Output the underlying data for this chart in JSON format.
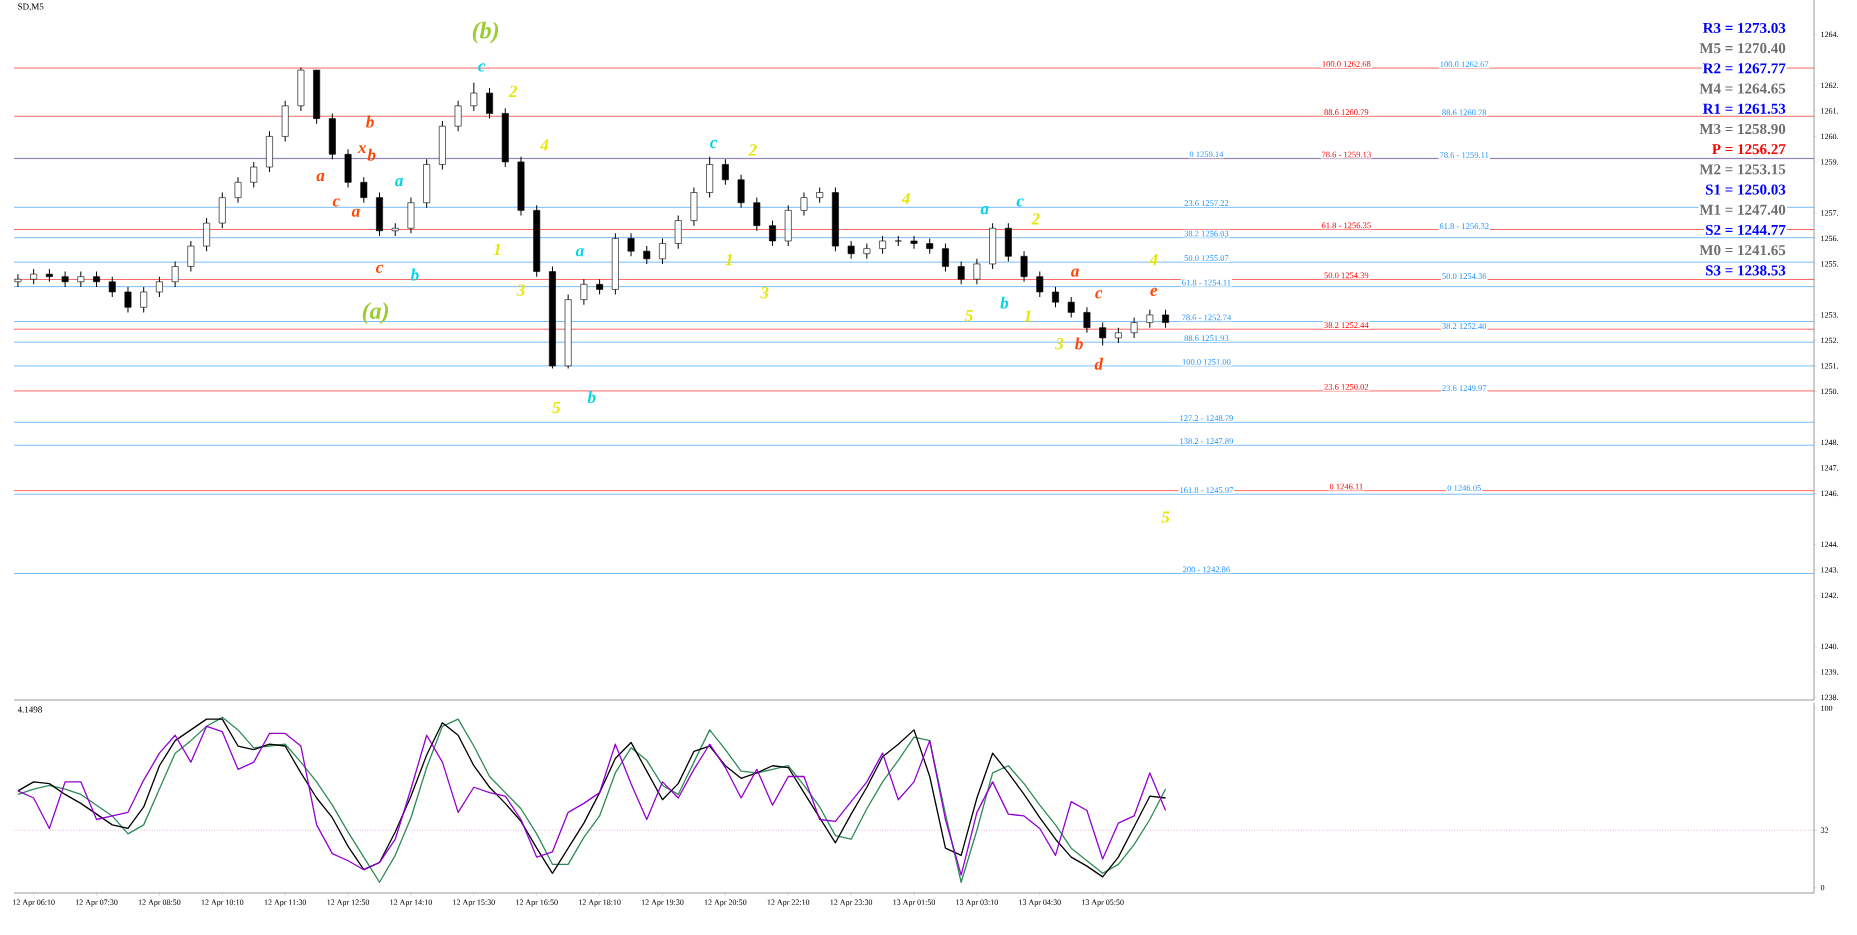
{
  "chart_data": [
    {
      "type": "candlestick",
      "title": "SD,M5",
      "tick_labels": "y",
      "categories": [
        null,
        null,
        null,
        null,
        null,
        null,
        null,
        null,
        null,
        null,
        null,
        null,
        null,
        null,
        null,
        null,
        null,
        null,
        null,
        null,
        null,
        null,
        null,
        null,
        null,
        null,
        null,
        null,
        null,
        null,
        null,
        null,
        null,
        null,
        null,
        null,
        null,
        null,
        null,
        null,
        null,
        null,
        null,
        null,
        null,
        null,
        null,
        null,
        null,
        null,
        null,
        null,
        null,
        null,
        null,
        null,
        null,
        null,
        null,
        null,
        null,
        null,
        null,
        null,
        null,
        null,
        null,
        null,
        null,
        null,
        null,
        null,
        null,
        null,
        null,
        null,
        null,
        null,
        null,
        null,
        null,
        null,
        null,
        null,
        null,
        null,
        null,
        null,
        null,
        null,
        null,
        null,
        null,
        null,
        null,
        null,
        null,
        null,
        null,
        null,
        null,
        null,
        null,
        null,
        null,
        null,
        null,
        null,
        null,
        null,
        null,
        null,
        null,
        null,
        null
      ],
      "ohlc": [
        [
          1254.3,
          1254.6,
          1254.1,
          1254.4
        ],
        [
          1254.4,
          1254.8,
          1254.2,
          1254.6
        ],
        [
          1254.6,
          1254.8,
          1254.3,
          1254.5
        ],
        [
          1254.5,
          1254.7,
          1254.1,
          1254.3
        ],
        [
          1254.3,
          1254.7,
          1254.1,
          1254.5
        ],
        [
          1254.5,
          1254.7,
          1254.1,
          1254.3
        ],
        [
          1254.3,
          1254.5,
          1253.7,
          1253.9
        ],
        [
          1253.9,
          1254.1,
          1253.1,
          1253.3
        ],
        [
          1253.3,
          1254.1,
          1253.1,
          1253.9
        ],
        [
          1253.9,
          1254.5,
          1253.7,
          1254.3
        ],
        [
          1254.3,
          1255.1,
          1254.1,
          1254.9
        ],
        [
          1254.9,
          1255.9,
          1254.7,
          1255.7
        ],
        [
          1255.7,
          1256.8,
          1255.5,
          1256.6
        ],
        [
          1256.6,
          1257.8,
          1256.4,
          1257.6
        ],
        [
          1257.6,
          1258.4,
          1257.4,
          1258.2
        ],
        [
          1258.2,
          1259.0,
          1258.0,
          1258.8
        ],
        [
          1258.8,
          1260.2,
          1258.6,
          1260.0
        ],
        [
          1260.0,
          1261.4,
          1259.8,
          1261.2
        ],
        [
          1261.2,
          1262.7,
          1261.0,
          1262.6
        ],
        [
          1262.6,
          1262.6,
          1260.5,
          1260.7
        ],
        [
          1260.7,
          1260.9,
          1259.1,
          1259.3
        ],
        [
          1259.3,
          1259.5,
          1258.0,
          1258.2
        ],
        [
          1258.2,
          1258.4,
          1257.4,
          1257.6
        ],
        [
          1257.6,
          1257.8,
          1256.1,
          1256.3
        ],
        [
          1256.3,
          1256.6,
          1256.1,
          1256.4
        ],
        [
          1256.4,
          1257.6,
          1256.2,
          1257.4
        ],
        [
          1257.4,
          1259.1,
          1257.2,
          1258.9
        ],
        [
          1258.9,
          1260.6,
          1258.7,
          1260.4
        ],
        [
          1260.4,
          1261.4,
          1260.2,
          1261.2
        ],
        [
          1261.2,
          1262.1,
          1261.0,
          1261.7
        ],
        [
          1261.7,
          1261.9,
          1260.7,
          1260.9
        ],
        [
          1260.9,
          1261.1,
          1258.8,
          1259.0
        ],
        [
          1259.0,
          1259.2,
          1256.9,
          1257.1
        ],
        [
          1257.1,
          1257.3,
          1254.5,
          1254.7
        ],
        [
          1254.7,
          1254.9,
          1250.9,
          1251.0
        ],
        [
          1251.0,
          1253.8,
          1250.9,
          1253.6
        ],
        [
          1253.6,
          1254.4,
          1253.4,
          1254.2
        ],
        [
          1254.2,
          1254.4,
          1253.8,
          1254.0
        ],
        [
          1254.0,
          1256.2,
          1253.8,
          1256.0
        ],
        [
          1256.0,
          1256.2,
          1255.3,
          1255.5
        ],
        [
          1255.5,
          1255.7,
          1255.0,
          1255.2
        ],
        [
          1255.2,
          1256.0,
          1255.0,
          1255.8
        ],
        [
          1255.8,
          1256.9,
          1255.6,
          1256.7
        ],
        [
          1256.7,
          1258.0,
          1256.5,
          1257.8
        ],
        [
          1257.8,
          1259.2,
          1257.6,
          1258.9
        ],
        [
          1258.9,
          1259.1,
          1258.1,
          1258.3
        ],
        [
          1258.3,
          1258.5,
          1257.2,
          1257.4
        ],
        [
          1257.4,
          1257.6,
          1256.3,
          1256.5
        ],
        [
          1256.5,
          1256.7,
          1255.7,
          1255.9
        ],
        [
          1255.9,
          1257.3,
          1255.7,
          1257.1
        ],
        [
          1257.1,
          1257.8,
          1256.9,
          1257.6
        ],
        [
          1257.6,
          1258.0,
          1257.4,
          1257.8
        ],
        [
          1257.8,
          1258.0,
          1255.5,
          1255.7
        ],
        [
          1255.7,
          1255.9,
          1255.2,
          1255.4
        ],
        [
          1255.4,
          1255.8,
          1255.2,
          1255.6
        ],
        [
          1255.6,
          1256.1,
          1255.4,
          1255.9
        ],
        [
          1255.9,
          1256.1,
          1255.7,
          1255.9
        ],
        [
          1255.9,
          1256.1,
          1255.6,
          1255.8
        ],
        [
          1255.8,
          1256.0,
          1255.4,
          1255.6
        ],
        [
          1255.6,
          1255.8,
          1254.7,
          1254.9
        ],
        [
          1254.9,
          1255.1,
          1254.2,
          1254.4
        ],
        [
          1254.4,
          1255.2,
          1254.2,
          1255.0
        ],
        [
          1255.0,
          1256.6,
          1254.8,
          1256.4
        ],
        [
          1256.4,
          1256.6,
          1255.1,
          1255.3
        ],
        [
          1255.3,
          1255.5,
          1254.3,
          1254.5
        ],
        [
          1254.5,
          1254.7,
          1253.7,
          1253.9
        ],
        [
          1253.9,
          1254.1,
          1253.3,
          1253.5
        ],
        [
          1253.5,
          1253.7,
          1252.9,
          1253.1
        ],
        [
          1253.1,
          1253.3,
          1252.3,
          1252.5
        ],
        [
          1252.5,
          1252.7,
          1251.8,
          1252.1
        ],
        [
          1252.1,
          1252.5,
          1251.9,
          1252.3
        ],
        [
          1252.3,
          1252.9,
          1252.1,
          1252.7
        ],
        [
          1252.7,
          1253.2,
          1252.5,
          1253.0
        ],
        [
          1253.0,
          1253.2,
          1252.5,
          1252.7
        ],
        null,
        null,
        null,
        null,
        null,
        null,
        null,
        null,
        null,
        null,
        null,
        null,
        null,
        null,
        null,
        null,
        null,
        null,
        null,
        null,
        null,
        null,
        null,
        null,
        null,
        null,
        null,
        null,
        null,
        null,
        null,
        null,
        null,
        null,
        null,
        null,
        null,
        null,
        null,
        null,
        null
      ],
      "ylim": [
        1237.9,
        1265.35
      ],
      "yticks": [
        {
          "value": 1264,
          "label": "1264."
        },
        {
          "value": 1262,
          "label": "1262."
        },
        {
          "value": 1261,
          "label": "1261."
        },
        {
          "value": 1260,
          "label": "1260."
        },
        {
          "value": 1259,
          "label": "1259."
        },
        {
          "value": 1257,
          "label": "1257."
        },
        {
          "value": 1256,
          "label": "1256."
        },
        {
          "value": 1255,
          "label": "1255."
        },
        {
          "value": 1253,
          "label": "1253."
        },
        {
          "value": 1252,
          "label": "1252."
        },
        {
          "value": 1251,
          "label": "1251."
        },
        {
          "value": 1250,
          "label": "1250."
        },
        {
          "value": 1248,
          "label": "1248."
        },
        {
          "value": 1247,
          "label": "1247."
        },
        {
          "value": 1246,
          "label": "1246."
        },
        {
          "value": 1244,
          "label": "1244."
        },
        {
          "value": 1243,
          "label": "1243."
        },
        {
          "value": 1242,
          "label": "1242."
        },
        {
          "value": 1240,
          "label": "1240."
        },
        {
          "value": 1239,
          "label": "1239."
        },
        {
          "value": 1238,
          "label": "1238."
        }
      ],
      "ref_lines": [
        {
          "axis": "y",
          "value": 1262.68,
          "color": "#ff0000"
        },
        {
          "axis": "y",
          "value": 1260.79,
          "color": "#ff0000"
        },
        {
          "axis": "y",
          "value": 1259.13,
          "color": "#ff0000"
        },
        {
          "axis": "y",
          "value": 1256.35,
          "color": "#ff0000"
        },
        {
          "axis": "y",
          "value": 1254.39,
          "color": "#ff0000"
        },
        {
          "axis": "y",
          "value": 1252.44,
          "color": "#ff0000"
        },
        {
          "axis": "y",
          "value": 1250.02,
          "color": "#ff0000"
        },
        {
          "axis": "y",
          "value": 1246.11,
          "color": "#ff0000"
        },
        {
          "axis": "y",
          "value": 1259.14,
          "color": "#1e90ff"
        },
        {
          "axis": "y",
          "value": 1257.22,
          "color": "#1e90ff"
        },
        {
          "axis": "y",
          "value": 1256.03,
          "color": "#1e90ff"
        },
        {
          "axis": "y",
          "value": 1255.07,
          "color": "#1e90ff"
        },
        {
          "axis": "y",
          "value": 1254.11,
          "color": "#1e90ff"
        },
        {
          "axis": "y",
          "value": 1252.74,
          "color": "#1e90ff"
        },
        {
          "axis": "y",
          "value": 1251.93,
          "color": "#1e90ff"
        },
        {
          "axis": "y",
          "value": 1251.0,
          "color": "#1e90ff"
        },
        {
          "axis": "y",
          "value": 1248.79,
          "color": "#1e90ff"
        },
        {
          "axis": "y",
          "value": 1247.89,
          "color": "#1e90ff"
        },
        {
          "axis": "y",
          "value": 1245.97,
          "color": "#1e90ff"
        },
        {
          "axis": "y",
          "value": 1242.86,
          "color": "#1e90ff"
        }
      ],
      "annotations": [
        "R3 = 1273.03",
        "M5 = 1270.40",
        "R2 = 1267.77",
        "M4 = 1264.65",
        "R1 = 1261.53",
        "M3 = 1258.90",
        "P  = 1256.27",
        "M2 = 1253.15",
        "S1 = 1250.03",
        "M1 = 1247.40",
        "S2 = 1244.77",
        "M0 = 1241.65",
        "S3 = 1238.53",
        "(b)",
        "(a)",
        "c",
        "2",
        "b",
        "x",
        "b",
        "a",
        "c",
        "a",
        "a",
        "c",
        "b",
        "1",
        "4",
        "3",
        "5",
        "b",
        "a",
        "c",
        "2",
        "1",
        "3",
        "4",
        "a",
        "c",
        "2",
        "5",
        "b",
        "1",
        "a",
        "c",
        "4",
        "e",
        "3",
        "b",
        "d",
        "5",
        {
          "text": "100.0 1262.68",
          "y": 1262.68
        },
        {
          "text": "88.6 1260.79",
          "y": 1260.79
        },
        {
          "text": "78.6 - 1259.13",
          "y": 1259.13
        },
        {
          "text": "61.8 - 1256.35",
          "y": 1256.35
        },
        {
          "text": "50.0 1254.39",
          "y": 1254.39
        },
        {
          "text": "38.2 1252.44",
          "y": 1252.44
        },
        {
          "text": "23.6 1250.02",
          "y": 1250.02
        },
        {
          "text": "0 1246.11",
          "y": 1246.11
        },
        {
          "text": "100.0 1262.67",
          "y": 1262.67
        },
        {
          "text": "88.6 1260.78",
          "y": 1260.78
        },
        {
          "text": "78.6 - 1259.11",
          "y": 1259.11
        },
        {
          "text": "61.8 - 1256.32",
          "y": 1256.32
        },
        {
          "text": "50.0 1254.36",
          "y": 1254.36
        },
        {
          "text": "38.2 1252.40",
          "y": 1252.4
        },
        {
          "text": "23.6 1249.97",
          "y": 1249.97
        },
        {
          "text": "0 1246.05",
          "y": 1246.05
        },
        {
          "text": "0 1259.14",
          "y": 1259.14
        },
        {
          "text": "23.6 1257.22",
          "y": 1257.22
        },
        {
          "text": "38.2 1256.03",
          "y": 1256.03
        },
        {
          "text": "50.0 1255.07",
          "y": 1255.07
        },
        {
          "text": "61.8 - 1254.11",
          "y": 1254.11
        },
        {
          "text": "78.6 - 1252.74",
          "y": 1252.74
        },
        {
          "text": "88.6 1251.93",
          "y": 1251.93
        },
        {
          "text": "100.0 1251.00",
          "y": 1251.0
        },
        {
          "text": "127.2 - 1248.79",
          "y": 1248.79
        },
        {
          "text": "138.2 - 1247.89",
          "y": 1247.89
        },
        {
          "text": "161.8 - 1245.97",
          "y": 1245.97
        },
        {
          "text": "200 - 1242.86",
          "y": 1242.86
        }
      ]
    },
    {
      "type": "line",
      "title": "4.1498",
      "categories": [
        null,
        "12 Apr 06:10",
        null,
        null,
        null,
        "12 Apr 07:30",
        null,
        null,
        null,
        "12 Apr 08:50",
        null,
        null,
        null,
        "12 Apr 10:10",
        null,
        null,
        null,
        "12 Apr 11:30",
        null,
        null,
        null,
        "12 Apr 12:50",
        null,
        null,
        null,
        "12 Apr 14:10",
        null,
        null,
        null,
        "12 Apr 15:30",
        null,
        null,
        null,
        "12 Apr 16:50",
        null,
        null,
        null,
        "12 Apr 18:10",
        null,
        null,
        null,
        "12 Apr 19:30",
        null,
        null,
        null,
        "12 Apr 20:50",
        null,
        null,
        null,
        "12 Apr 22:10",
        null,
        null,
        null,
        "12 Apr 23:30",
        null,
        null,
        null,
        "13 Apr 01:50",
        null,
        null,
        null,
        "13 Apr 03:10",
        null,
        null,
        null,
        "13 Apr 04:30",
        null,
        null,
        null,
        "13 Apr 05:50",
        null,
        null,
        null,
        null,
        null,
        null,
        null,
        null,
        null,
        null,
        null,
        null,
        null,
        null,
        null,
        null,
        null,
        null,
        null,
        null,
        null,
        null,
        null,
        null,
        null,
        null,
        null,
        null,
        null,
        null,
        null,
        null,
        null,
        null,
        null,
        null,
        null,
        null,
        null,
        null,
        null,
        null,
        null,
        null,
        null
      ],
      "ylim": [
        -3,
        103
      ],
      "yticks": [
        0,
        32,
        100
      ],
      "ref_lines": [
        {
          "axis": "y",
          "value": 32,
          "color": "#c030c0",
          "line_style": "dotted"
        }
      ],
      "series": [
        {
          "color": "#2e8b57",
          "values": [
            52,
            55,
            57,
            55,
            52,
            46,
            40,
            30,
            35,
            55,
            75,
            82,
            90,
            95,
            88,
            78,
            79,
            80,
            70,
            59,
            46,
            31,
            17,
            3,
            18,
            39,
            67,
            90,
            94,
            79,
            62,
            53,
            44,
            30,
            13,
            13,
            28,
            40,
            64,
            78,
            71,
            57,
            52,
            70,
            88,
            77,
            65,
            64,
            66,
            68,
            57,
            45,
            29,
            27,
            44,
            59,
            71,
            84,
            82,
            41,
            3,
            32,
            64,
            68,
            58,
            46,
            35,
            22,
            15,
            8,
            13,
            24,
            38,
            55,
            null,
            null,
            null,
            null,
            null,
            null,
            null,
            null,
            null,
            null,
            null,
            null,
            null,
            null,
            null,
            null,
            null,
            null,
            null,
            null,
            null,
            null,
            null,
            null,
            null,
            null,
            null,
            null,
            null,
            null,
            null,
            null,
            null,
            null,
            null,
            null,
            null,
            null,
            null,
            null,
            null
          ]
        },
        {
          "color": "#000000",
          "values": [
            54,
            59,
            58,
            52,
            47,
            41,
            35,
            33,
            45,
            68,
            82,
            88,
            94,
            94,
            79,
            77,
            80,
            79,
            64,
            50,
            39,
            23,
            10,
            14,
            31,
            51,
            74,
            92,
            85,
            68,
            56,
            47,
            37,
            22,
            8,
            22,
            36,
            53,
            72,
            81,
            65,
            49,
            58,
            76,
            79,
            68,
            61,
            64,
            68,
            67,
            53,
            39,
            25,
            41,
            56,
            73,
            80,
            88,
            62,
            22,
            18,
            50,
            75,
            64,
            52,
            39,
            27,
            17,
            12,
            6,
            17,
            34,
            51,
            50,
            null,
            null,
            null,
            null,
            null,
            null,
            null,
            null,
            null,
            null,
            null,
            null,
            null,
            null,
            null,
            null,
            null,
            null,
            null,
            null,
            null,
            null,
            null,
            null,
            null,
            null,
            null,
            null,
            null,
            null,
            null,
            null,
            null,
            null,
            null,
            null,
            null,
            null,
            null,
            null,
            null
          ]
        },
        {
          "color": "#9400d3",
          "values": [
            54,
            50,
            33,
            59,
            59,
            38,
            40,
            42,
            60,
            75,
            85,
            70,
            90,
            87,
            66,
            70,
            86,
            86,
            79,
            35,
            19,
            15,
            10,
            14,
            27,
            55,
            85,
            70,
            42,
            56,
            53,
            51,
            38,
            17,
            20,
            42,
            47,
            53,
            80,
            58,
            38,
            59,
            50,
            66,
            80,
            67,
            50,
            66,
            46,
            62,
            62,
            38,
            37,
            48,
            59,
            75,
            49,
            59,
            82,
            38,
            7,
            42,
            59,
            41,
            40,
            33,
            18,
            48,
            43,
            16,
            36,
            40,
            64,
            43,
            null,
            null,
            null,
            null,
            null,
            null,
            null,
            null,
            null,
            null,
            null,
            null,
            null,
            null,
            null,
            null,
            null,
            null,
            null,
            null,
            null,
            null,
            null,
            null,
            null,
            null,
            null,
            null,
            null,
            null,
            null,
            null,
            null,
            null,
            null,
            null,
            null,
            null,
            null,
            null,
            null
          ]
        }
      ]
    }
  ]
}
